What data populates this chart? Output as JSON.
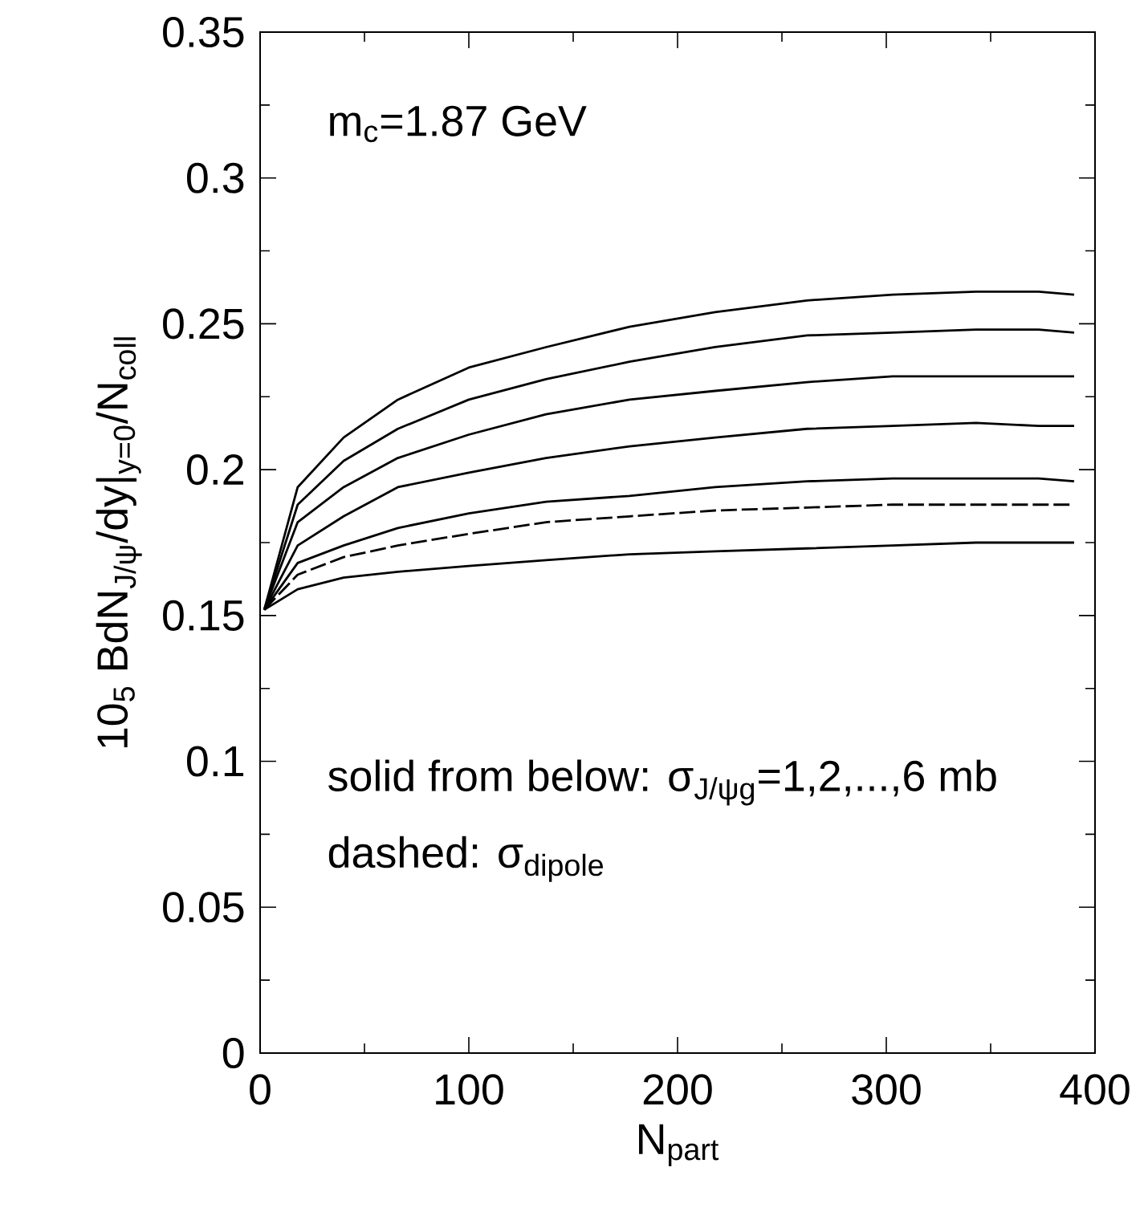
{
  "chart_data": {
    "type": "line",
    "xlabel": "N$_{part}$",
    "ylabel": "10$_{5}$ BdN$_{J/ψ}$/dy|$_{y=0}$/N$_{coll}$",
    "x": [
      2,
      18,
      40,
      66,
      100,
      137,
      177,
      218,
      262,
      303,
      343,
      373,
      390
    ],
    "series": [
      {
        "color": "#000000",
        "line_style": "solid",
        "values": [
          0.152,
          0.159,
          0.163,
          0.165,
          0.167,
          0.169,
          0.171,
          0.172,
          0.173,
          0.174,
          0.175,
          0.175,
          0.175
        ]
      },
      {
        "color": "#000000",
        "line_style": "solid",
        "values": [
          0.152,
          0.168,
          0.174,
          0.18,
          0.185,
          0.189,
          0.191,
          0.194,
          0.196,
          0.197,
          0.197,
          0.197,
          0.196
        ]
      },
      {
        "color": "#000000",
        "line_style": "solid",
        "values": [
          0.152,
          0.174,
          0.184,
          0.194,
          0.199,
          0.204,
          0.208,
          0.211,
          0.214,
          0.215,
          0.216,
          0.215,
          0.215
        ]
      },
      {
        "color": "#000000",
        "line_style": "solid",
        "values": [
          0.152,
          0.182,
          0.194,
          0.204,
          0.212,
          0.219,
          0.224,
          0.227,
          0.23,
          0.232,
          0.232,
          0.232,
          0.232
        ]
      },
      {
        "color": "#000000",
        "line_style": "solid",
        "values": [
          0.152,
          0.188,
          0.203,
          0.214,
          0.224,
          0.231,
          0.237,
          0.242,
          0.246,
          0.247,
          0.248,
          0.248,
          0.247
        ]
      },
      {
        "color": "#000000",
        "line_style": "solid",
        "values": [
          0.152,
          0.194,
          0.211,
          0.224,
          0.235,
          0.242,
          0.249,
          0.254,
          0.258,
          0.26,
          0.261,
          0.261,
          0.26
        ]
      },
      {
        "color": "#000000",
        "line_style": "dashed",
        "values": [
          0.152,
          0.164,
          0.17,
          0.174,
          0.178,
          0.182,
          0.184,
          0.186,
          0.187,
          0.188,
          0.188,
          0.188,
          0.188
        ]
      }
    ],
    "xlim": [
      0,
      400
    ],
    "xticks": [
      0,
      100,
      200,
      300,
      400
    ],
    "ylim": [
      0,
      0.35
    ],
    "yticks": [
      0,
      0.05,
      0.1,
      0.15,
      0.2,
      0.25,
      0.3,
      0.35
    ],
    "grid": false,
    "marker": "none",
    "annotations": [
      "m$_{c}$=1.87 GeV",
      "solid from below: σ$_{J/ψg}$=1,2,...,6 mb",
      "dashed: σ$_{dipole}$"
    ]
  }
}
